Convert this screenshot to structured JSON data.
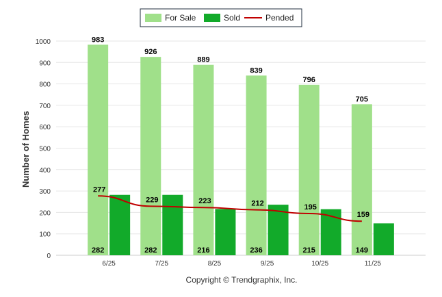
{
  "chart_data": {
    "type": "bar",
    "categories": [
      "6/25",
      "7/25",
      "8/25",
      "9/25",
      "10/25",
      "11/25"
    ],
    "series": [
      {
        "name": "For Sale",
        "kind": "bar",
        "color": "#a0e08a",
        "values": [
          983,
          926,
          889,
          839,
          796,
          705
        ]
      },
      {
        "name": "Sold",
        "kind": "bar",
        "color": "#12aa2a",
        "values": [
          282,
          282,
          216,
          236,
          215,
          149
        ]
      },
      {
        "name": "Pended",
        "kind": "line",
        "color": "#c00000",
        "values": [
          277,
          229,
          223,
          212,
          195,
          159
        ]
      }
    ],
    "title": "",
    "xlabel": "",
    "ylabel": "Number of Homes",
    "ylim": [
      0,
      1000
    ],
    "yticks": [
      0,
      100,
      200,
      300,
      400,
      500,
      600,
      700,
      800,
      900,
      1000
    ],
    "grid": true,
    "legend": "top-center"
  },
  "footer": {
    "copyright": "Copyright © Trendgraphix, Inc."
  }
}
